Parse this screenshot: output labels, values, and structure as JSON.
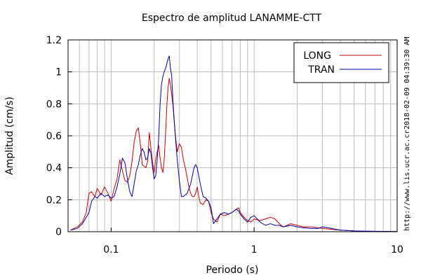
{
  "chart_data": {
    "type": "line",
    "title": "Espectro de amplitud LANAMME-CTT",
    "xlabel": "Periodo (s)",
    "ylabel": "Amplitud (cm/s)",
    "x_scale": "log",
    "xlim": [
      0.05,
      10
    ],
    "ylim": [
      0,
      1.2
    ],
    "x_ticks": [
      {
        "value": 0.1,
        "label": "0.1"
      },
      {
        "value": 1,
        "label": "1"
      },
      {
        "value": 10,
        "label": "10"
      }
    ],
    "y_ticks": [
      {
        "value": 0,
        "label": "0"
      },
      {
        "value": 0.2,
        "label": "0.2"
      },
      {
        "value": 0.4,
        "label": "0.4"
      },
      {
        "value": 0.6,
        "label": "0.6"
      },
      {
        "value": 0.8,
        "label": "0.8"
      },
      {
        "value": 1.0,
        "label": "1"
      },
      {
        "value": 1.2,
        "label": "1.2"
      }
    ],
    "grid": true,
    "legend": "top-right",
    "series": [
      {
        "name": "LONG",
        "color": "#cc0000",
        "points": [
          [
            0.052,
            0.01
          ],
          [
            0.058,
            0.03
          ],
          [
            0.063,
            0.06
          ],
          [
            0.067,
            0.12
          ],
          [
            0.07,
            0.24
          ],
          [
            0.073,
            0.25
          ],
          [
            0.077,
            0.22
          ],
          [
            0.08,
            0.27
          ],
          [
            0.085,
            0.23
          ],
          [
            0.09,
            0.28
          ],
          [
            0.095,
            0.24
          ],
          [
            0.1,
            0.19
          ],
          [
            0.105,
            0.27
          ],
          [
            0.11,
            0.33
          ],
          [
            0.115,
            0.45
          ],
          [
            0.12,
            0.38
          ],
          [
            0.125,
            0.32
          ],
          [
            0.13,
            0.31
          ],
          [
            0.135,
            0.35
          ],
          [
            0.14,
            0.44
          ],
          [
            0.145,
            0.56
          ],
          [
            0.15,
            0.63
          ],
          [
            0.155,
            0.65
          ],
          [
            0.16,
            0.55
          ],
          [
            0.165,
            0.42
          ],
          [
            0.17,
            0.41
          ],
          [
            0.175,
            0.4
          ],
          [
            0.18,
            0.44
          ],
          [
            0.185,
            0.62
          ],
          [
            0.19,
            0.52
          ],
          [
            0.195,
            0.43
          ],
          [
            0.2,
            0.37
          ],
          [
            0.205,
            0.45
          ],
          [
            0.21,
            0.5
          ],
          [
            0.215,
            0.54
          ],
          [
            0.22,
            0.46
          ],
          [
            0.225,
            0.4
          ],
          [
            0.23,
            0.37
          ],
          [
            0.235,
            0.45
          ],
          [
            0.24,
            0.6
          ],
          [
            0.245,
            0.78
          ],
          [
            0.25,
            0.9
          ],
          [
            0.255,
            0.96
          ],
          [
            0.26,
            0.92
          ],
          [
            0.27,
            0.8
          ],
          [
            0.28,
            0.62
          ],
          [
            0.29,
            0.5
          ],
          [
            0.3,
            0.55
          ],
          [
            0.31,
            0.53
          ],
          [
            0.32,
            0.45
          ],
          [
            0.33,
            0.4
          ],
          [
            0.34,
            0.34
          ],
          [
            0.35,
            0.28
          ],
          [
            0.36,
            0.24
          ],
          [
            0.37,
            0.22
          ],
          [
            0.38,
            0.22
          ],
          [
            0.39,
            0.24
          ],
          [
            0.4,
            0.28
          ],
          [
            0.41,
            0.22
          ],
          [
            0.42,
            0.18
          ],
          [
            0.44,
            0.17
          ],
          [
            0.46,
            0.2
          ],
          [
            0.48,
            0.19
          ],
          [
            0.5,
            0.12
          ],
          [
            0.52,
            0.08
          ],
          [
            0.55,
            0.06
          ],
          [
            0.58,
            0.11
          ],
          [
            0.62,
            0.1
          ],
          [
            0.66,
            0.11
          ],
          [
            0.7,
            0.12
          ],
          [
            0.75,
            0.14
          ],
          [
            0.78,
            0.15
          ],
          [
            0.8,
            0.12
          ],
          [
            0.85,
            0.09
          ],
          [
            0.9,
            0.07
          ],
          [
            0.95,
            0.06
          ],
          [
            1.0,
            0.08
          ],
          [
            1.1,
            0.07
          ],
          [
            1.2,
            0.08
          ],
          [
            1.3,
            0.09
          ],
          [
            1.4,
            0.08
          ],
          [
            1.5,
            0.05
          ],
          [
            1.6,
            0.03
          ],
          [
            1.7,
            0.04
          ],
          [
            1.8,
            0.05
          ],
          [
            2.0,
            0.04
          ],
          [
            2.2,
            0.03
          ],
          [
            2.5,
            0.03
          ],
          [
            2.8,
            0.025
          ],
          [
            3.0,
            0.02
          ],
          [
            3.5,
            0.015
          ],
          [
            4.0,
            0.01
          ],
          [
            5.0,
            0.005
          ],
          [
            6.0,
            0.003
          ],
          [
            8.0,
            0.002
          ],
          [
            10.0,
            0.001
          ]
        ]
      },
      {
        "name": "TRAN",
        "color": "#0000aa",
        "points": [
          [
            0.052,
            0.01
          ],
          [
            0.058,
            0.02
          ],
          [
            0.063,
            0.05
          ],
          [
            0.067,
            0.09
          ],
          [
            0.07,
            0.12
          ],
          [
            0.073,
            0.19
          ],
          [
            0.077,
            0.22
          ],
          [
            0.08,
            0.21
          ],
          [
            0.085,
            0.24
          ],
          [
            0.09,
            0.22
          ],
          [
            0.095,
            0.23
          ],
          [
            0.1,
            0.21
          ],
          [
            0.105,
            0.22
          ],
          [
            0.11,
            0.28
          ],
          [
            0.115,
            0.36
          ],
          [
            0.12,
            0.46
          ],
          [
            0.125,
            0.43
          ],
          [
            0.13,
            0.33
          ],
          [
            0.135,
            0.25
          ],
          [
            0.14,
            0.22
          ],
          [
            0.145,
            0.3
          ],
          [
            0.15,
            0.38
          ],
          [
            0.155,
            0.42
          ],
          [
            0.16,
            0.48
          ],
          [
            0.165,
            0.52
          ],
          [
            0.17,
            0.5
          ],
          [
            0.175,
            0.45
          ],
          [
            0.18,
            0.46
          ],
          [
            0.185,
            0.52
          ],
          [
            0.19,
            0.49
          ],
          [
            0.195,
            0.4
          ],
          [
            0.2,
            0.33
          ],
          [
            0.205,
            0.35
          ],
          [
            0.21,
            0.45
          ],
          [
            0.215,
            0.58
          ],
          [
            0.22,
            0.8
          ],
          [
            0.225,
            0.92
          ],
          [
            0.23,
            0.97
          ],
          [
            0.235,
            1.0
          ],
          [
            0.24,
            1.02
          ],
          [
            0.245,
            1.05
          ],
          [
            0.25,
            1.08
          ],
          [
            0.255,
            1.1
          ],
          [
            0.26,
            1.02
          ],
          [
            0.265,
            0.98
          ],
          [
            0.27,
            0.83
          ],
          [
            0.28,
            0.62
          ],
          [
            0.29,
            0.45
          ],
          [
            0.3,
            0.32
          ],
          [
            0.31,
            0.22
          ],
          [
            0.32,
            0.22
          ],
          [
            0.34,
            0.24
          ],
          [
            0.36,
            0.3
          ],
          [
            0.38,
            0.4
          ],
          [
            0.39,
            0.42
          ],
          [
            0.4,
            0.4
          ],
          [
            0.42,
            0.3
          ],
          [
            0.44,
            0.22
          ],
          [
            0.46,
            0.21
          ],
          [
            0.48,
            0.19
          ],
          [
            0.5,
            0.15
          ],
          [
            0.52,
            0.05
          ],
          [
            0.55,
            0.08
          ],
          [
            0.58,
            0.11
          ],
          [
            0.62,
            0.12
          ],
          [
            0.66,
            0.11
          ],
          [
            0.7,
            0.12
          ],
          [
            0.75,
            0.14
          ],
          [
            0.78,
            0.13
          ],
          [
            0.8,
            0.11
          ],
          [
            0.85,
            0.08
          ],
          [
            0.9,
            0.06
          ],
          [
            0.95,
            0.09
          ],
          [
            1.0,
            0.1
          ],
          [
            1.05,
            0.08
          ],
          [
            1.1,
            0.06
          ],
          [
            1.2,
            0.04
          ],
          [
            1.3,
            0.05
          ],
          [
            1.4,
            0.04
          ],
          [
            1.5,
            0.04
          ],
          [
            1.6,
            0.03
          ],
          [
            1.8,
            0.04
          ],
          [
            2.0,
            0.03
          ],
          [
            2.2,
            0.025
          ],
          [
            2.5,
            0.02
          ],
          [
            2.8,
            0.02
          ],
          [
            3.0,
            0.03
          ],
          [
            3.5,
            0.02
          ],
          [
            4.0,
            0.01
          ],
          [
            5.0,
            0.005
          ],
          [
            6.0,
            0.003
          ],
          [
            8.0,
            0.002
          ],
          [
            10.0,
            0.001
          ]
        ]
      }
    ]
  },
  "side_text": {
    "timestamp": "2018-02-09 04:39:30 AM",
    "url": "http://www.lis.ucr.ac.cr"
  }
}
